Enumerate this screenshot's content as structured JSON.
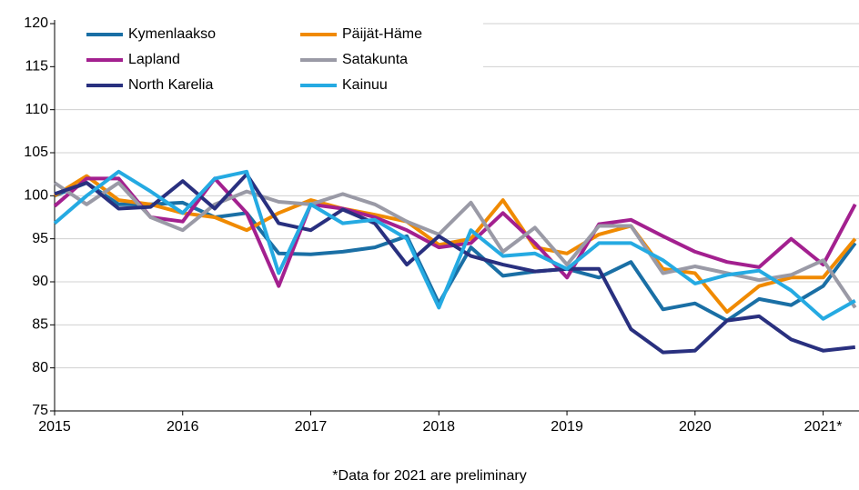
{
  "chart_data": {
    "type": "line",
    "x": [
      2015,
      2015.25,
      2015.5,
      2015.75,
      2016,
      2016.25,
      2016.5,
      2016.75,
      2017,
      2017.25,
      2017.5,
      2017.75,
      2018,
      2018.25,
      2018.5,
      2018.75,
      2019,
      2019.25,
      2019.5,
      2019.75,
      2020,
      2020.25,
      2020.5,
      2020.75,
      2021,
      2021.25
    ],
    "series": [
      {
        "name": "Kymenlaakso",
        "color": "#1a6fa5",
        "values": [
          100,
          101.5,
          99,
          99,
          99.2,
          97.5,
          98,
          93.3,
          93.2,
          93.5,
          94,
          95.3,
          87.5,
          94,
          90.7,
          91.2,
          91.5,
          90.5,
          92.3,
          86.8,
          87.5,
          85.5,
          88,
          87.3,
          89.5,
          94.5
        ]
      },
      {
        "name": "Päijät-Häme",
        "color": "#f08a00",
        "values": [
          100,
          102.3,
          99.5,
          99,
          98,
          97.5,
          96,
          98,
          99.5,
          98.5,
          97.8,
          97,
          94.3,
          95,
          99.5,
          94,
          93.3,
          95.5,
          96.5,
          91.5,
          91,
          86.5,
          89.5,
          90.5,
          90.5,
          95
        ]
      },
      {
        "name": "Lapland",
        "color": "#a3208f",
        "values": [
          98.8,
          102,
          102,
          97.5,
          97,
          102,
          98,
          89.5,
          99,
          98.5,
          97.5,
          96,
          94,
          94.5,
          98,
          94.5,
          90.5,
          96.7,
          97.2,
          95.3,
          93.5,
          92.3,
          91.7,
          95,
          92,
          99
        ]
      },
      {
        "name": "Satakunta",
        "color": "#9a9aa6",
        "values": [
          101.5,
          99,
          101.5,
          97.5,
          96,
          99,
          100.5,
          99.3,
          99,
          100.2,
          99,
          97,
          95.5,
          99.2,
          93.5,
          96.3,
          92,
          96.5,
          96.5,
          91,
          91.8,
          91,
          90.2,
          90.8,
          92.5,
          87
        ]
      },
      {
        "name": "North Karelia",
        "color": "#29307f",
        "values": [
          100.2,
          101.5,
          98.5,
          98.7,
          101.7,
          98.5,
          102.5,
          96.8,
          96,
          98.4,
          96.8,
          92,
          95.3,
          93,
          92,
          91.2,
          91.5,
          91.5,
          84.5,
          81.8,
          82,
          85.5,
          86,
          83.3,
          82,
          82.4
        ]
      },
      {
        "name": "Kainuu",
        "color": "#25aae2",
        "values": [
          96.8,
          100,
          102.8,
          100.5,
          98,
          102,
          102.8,
          91,
          99,
          96.8,
          97.2,
          95,
          87,
          96,
          93,
          93.3,
          91.5,
          94.5,
          94.5,
          92.5,
          89.8,
          90.8,
          91.3,
          89,
          85.7,
          87.8
        ]
      }
    ],
    "xlim": [
      2015,
      2021.28
    ],
    "xticks": [
      2015,
      2016,
      2017,
      2018,
      2019,
      2020,
      {
        "value": 2021,
        "label": "2021*"
      }
    ],
    "ylim": [
      75,
      120
    ],
    "yticks": [
      75,
      80,
      85,
      90,
      95,
      100,
      105,
      110,
      115,
      120
    ],
    "grid": true,
    "legend": "upper-left",
    "annotation": "*Data for 2021 are preliminary"
  }
}
